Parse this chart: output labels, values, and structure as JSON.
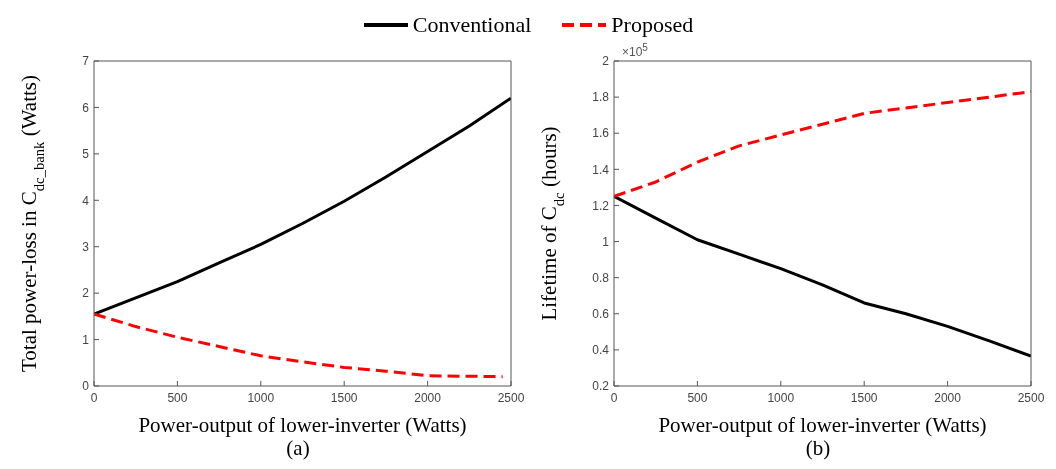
{
  "chart_data": [
    {
      "type": "line",
      "xlabel": "Power-output of lower-inverter (Watts)",
      "ylabel": "Total power-loss in C$_{dc_bank}$ (Watts)",
      "annotations": [
        "(a)"
      ],
      "x": [
        0,
        250,
        500,
        750,
        1000,
        1250,
        1500,
        1750,
        2000,
        2250,
        2500
      ],
      "series": [
        {
          "name": "Conventional",
          "color": "#000000",
          "line_style": "solid",
          "values": [
            1.55,
            1.9,
            2.25,
            2.65,
            3.05,
            3.5,
            3.98,
            4.5,
            5.05,
            5.6,
            6.2
          ]
        },
        {
          "name": "Proposed",
          "color": "#ff0000",
          "line_style": "dashed",
          "x": [
            0,
            250,
            500,
            750,
            1000,
            1250,
            1500,
            1750,
            2000,
            2250,
            2450
          ],
          "values": [
            1.55,
            1.28,
            1.05,
            0.85,
            0.65,
            0.52,
            0.4,
            0.32,
            0.22,
            0.21,
            0.2
          ]
        }
      ],
      "xlim": [
        0,
        2500
      ],
      "xticks": [
        0,
        500,
        1000,
        1500,
        2000,
        2500
      ],
      "ylim": [
        0,
        7
      ],
      "yticks": [
        0,
        1,
        2,
        3,
        4,
        5,
        6,
        7
      ],
      "grid": false,
      "legend": "top",
      "marker": "none"
    },
    {
      "type": "line",
      "xlabel": "Power-output of lower-inverter (Watts)",
      "ylabel": "Lifetime of  C$_{dc}$ (hours)",
      "annotations": [
        "×10$^{5}$",
        "(b)"
      ],
      "x": [
        0,
        250,
        500,
        750,
        1000,
        1250,
        1500,
        1750,
        2000,
        2250,
        2500
      ],
      "series": [
        {
          "color": "#000000",
          "line_style": "solid",
          "values": [
            1.25,
            1.13,
            1.01,
            0.93,
            0.85,
            0.76,
            0.66,
            0.6,
            0.53,
            0.45,
            0.365
          ]
        },
        {
          "color": "#ff0000",
          "line_style": "dashed",
          "values": [
            1.25,
            1.33,
            1.44,
            1.53,
            1.59,
            1.65,
            1.71,
            1.74,
            1.77,
            1.8,
            1.83
          ]
        }
      ],
      "xlim": [
        0,
        2500
      ],
      "xticks": [
        0,
        500,
        1000,
        1500,
        2000,
        2500
      ],
      "ylim": [
        0.2,
        2
      ],
      "yticks": [
        0.2,
        0.4,
        0.6,
        0.8,
        1,
        1.2,
        1.4,
        1.6,
        1.8,
        2
      ],
      "grid": false,
      "marker": "none"
    }
  ]
}
